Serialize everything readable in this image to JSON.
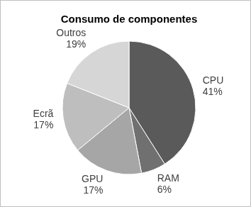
{
  "chart_data": {
    "type": "pie",
    "title": "Consumo de componentes",
    "categories": [
      "CPU",
      "RAM",
      "GPU",
      "Ecrã",
      "Outros"
    ],
    "values": [
      41,
      6,
      17,
      17,
      19
    ],
    "value_labels": [
      "41%",
      "6%",
      "17%",
      "17%",
      "19%"
    ],
    "colors": [
      "#5a5a5a",
      "#707070",
      "#a6a6a6",
      "#bebebe",
      "#d6d6d6"
    ],
    "data_labels": true
  }
}
